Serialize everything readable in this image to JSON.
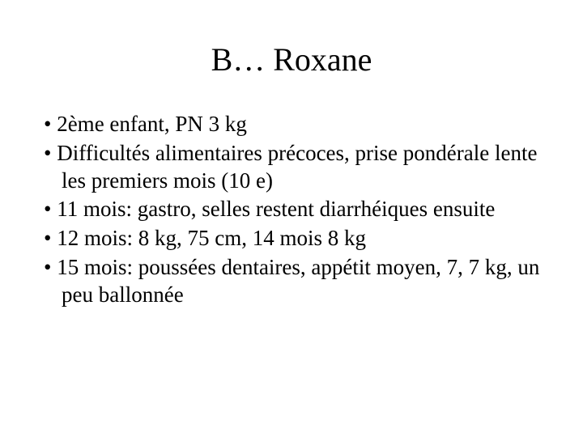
{
  "slide": {
    "title": "B… Roxane",
    "bullets": [
      "2ème enfant, PN 3 kg",
      "Difficultés alimentaires précoces, prise pondérale lente les premiers mois (10 e)",
      "11 mois: gastro, selles restent diarrhéiques ensuite",
      "12 mois: 8 kg, 75 cm, 14 mois 8 kg",
      "15 mois: poussées dentaires, appétit moyen, 7, 7 kg, un peu ballonnée"
    ]
  },
  "style": {
    "background_color": "#ffffff",
    "text_color": "#000000",
    "font_family": "Times New Roman",
    "title_fontsize": 40,
    "bullet_fontsize": 27
  }
}
